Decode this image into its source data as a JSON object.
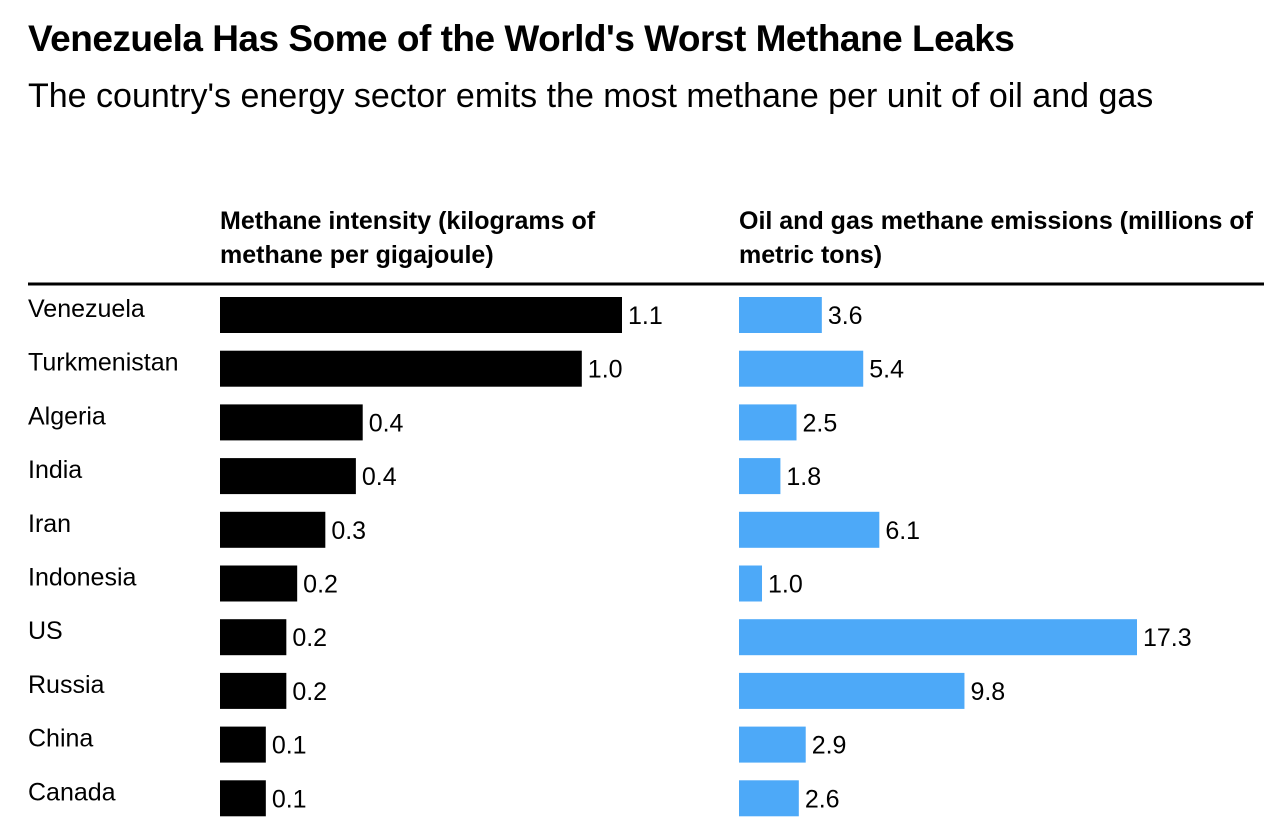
{
  "title": "Venezuela Has Some of the World's Worst Methane Leaks",
  "subtitle": "The country's energy sector emits the most methane per unit of oil and gas",
  "chart_data": [
    {
      "type": "bar",
      "orientation": "horizontal",
      "title": "Methane intensity (kilograms of methane per gigajoule)",
      "categories": [
        "Venezuela",
        "Turkmenistan",
        "Algeria",
        "India",
        "Iran",
        "Indonesia",
        "US",
        "Russia",
        "China",
        "Canada"
      ],
      "values": [
        1.1,
        1.0,
        0.4,
        0.4,
        0.3,
        0.2,
        0.2,
        0.2,
        0.1,
        0.1
      ],
      "labels": [
        "1.1",
        "1.0",
        "0.4",
        "0.4",
        "0.3",
        "0.2",
        "0.2",
        "0.2",
        "0.1",
        "0.1"
      ],
      "bar_fraction": [
        1.0,
        0.9,
        0.355,
        0.338,
        0.262,
        0.192,
        0.165,
        0.165,
        0.114,
        0.114
      ],
      "color": "#000000",
      "grid": false
    },
    {
      "type": "bar",
      "orientation": "horizontal",
      "title": "Oil and gas methane emissions (millions of metric tons)",
      "categories": [
        "Venezuela",
        "Turkmenistan",
        "Algeria",
        "India",
        "Iran",
        "Indonesia",
        "US",
        "Russia",
        "China",
        "Canada"
      ],
      "values": [
        3.6,
        5.4,
        2.5,
        1.8,
        6.1,
        1.0,
        17.3,
        9.8,
        2.9,
        2.6
      ],
      "labels": [
        "3.6",
        "5.4",
        "2.5",
        "1.8",
        "6.1",
        "1.0",
        "17.3",
        "9.8",
        "2.9",
        "2.6"
      ],
      "max": 17.3,
      "color": "#4DA9F8",
      "grid": false
    }
  ],
  "colors": {
    "intensity_bar": "#000000",
    "emissions_bar": "#4DA9F8",
    "rule": "#000000"
  }
}
